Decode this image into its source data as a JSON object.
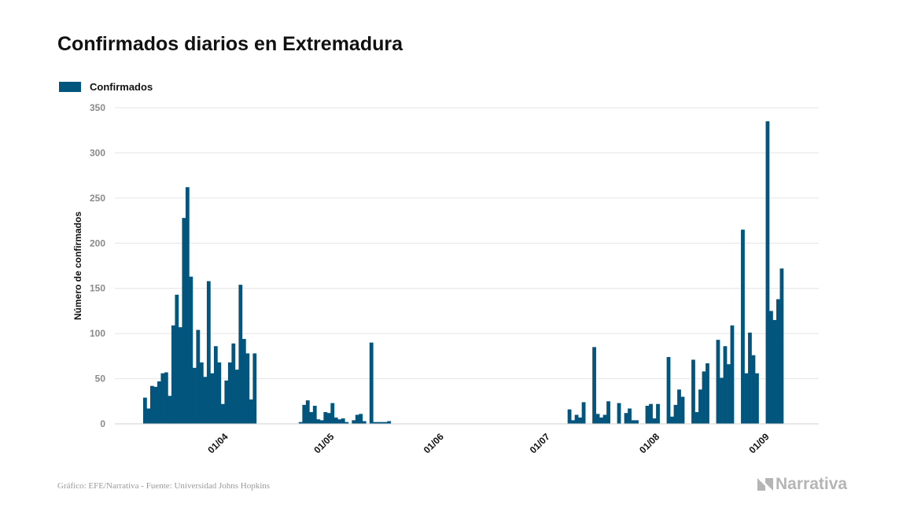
{
  "colors": {
    "bar": "#02557c",
    "grid": "#e4e4e4",
    "brand": "#b5b5b5"
  },
  "title": "Confirmados diarios en Extremadura",
  "footer": "Gráfico: EFE/Narrativa - Fuente: Universidad Johns Hopkins",
  "brand": "Narrativa",
  "chart_data": {
    "type": "bar",
    "title": "Confirmados diarios en Extremadura",
    "ylabel": "Número de confirmados",
    "xlabel": "",
    "ylim": [
      0,
      350
    ],
    "yticks": [
      0,
      50,
      100,
      150,
      200,
      250,
      300,
      350
    ],
    "grid": true,
    "legend_position": "top-left",
    "xlim": [
      "2020-03-01",
      "2020-09-16"
    ],
    "xticks": [
      {
        "date": "2020-04-01",
        "label": "01/04"
      },
      {
        "date": "2020-05-01",
        "label": "01/05"
      },
      {
        "date": "2020-06-01",
        "label": "01/06"
      },
      {
        "date": "2020-07-01",
        "label": "01/07"
      },
      {
        "date": "2020-08-01",
        "label": "01/08"
      },
      {
        "date": "2020-09-01",
        "label": "01/09"
      }
    ],
    "series": [
      {
        "name": "Confirmados",
        "points": [
          [
            "2020-03-09",
            29
          ],
          [
            "2020-03-10",
            17
          ],
          [
            "2020-03-11",
            42
          ],
          [
            "2020-03-12",
            41
          ],
          [
            "2020-03-13",
            47
          ],
          [
            "2020-03-14",
            56
          ],
          [
            "2020-03-15",
            57
          ],
          [
            "2020-03-16",
            31
          ],
          [
            "2020-03-17",
            109
          ],
          [
            "2020-03-18",
            143
          ],
          [
            "2020-03-19",
            107
          ],
          [
            "2020-03-20",
            228
          ],
          [
            "2020-03-21",
            262
          ],
          [
            "2020-03-22",
            163
          ],
          [
            "2020-03-23",
            62
          ],
          [
            "2020-03-24",
            104
          ],
          [
            "2020-03-25",
            68
          ],
          [
            "2020-03-26",
            52
          ],
          [
            "2020-03-27",
            158
          ],
          [
            "2020-03-28",
            56
          ],
          [
            "2020-03-29",
            86
          ],
          [
            "2020-03-30",
            68
          ],
          [
            "2020-03-31",
            22
          ],
          [
            "2020-04-01",
            48
          ],
          [
            "2020-04-02",
            68
          ],
          [
            "2020-04-03",
            89
          ],
          [
            "2020-04-04",
            60
          ],
          [
            "2020-04-05",
            154
          ],
          [
            "2020-04-06",
            94
          ],
          [
            "2020-04-07",
            78
          ],
          [
            "2020-04-08",
            27
          ],
          [
            "2020-04-09",
            78
          ],
          [
            "2020-04-22",
            2
          ],
          [
            "2020-04-23",
            21
          ],
          [
            "2020-04-24",
            26
          ],
          [
            "2020-04-25",
            13
          ],
          [
            "2020-04-26",
            20
          ],
          [
            "2020-04-27",
            5
          ],
          [
            "2020-04-28",
            4
          ],
          [
            "2020-04-29",
            13
          ],
          [
            "2020-04-30",
            12
          ],
          [
            "2020-05-01",
            23
          ],
          [
            "2020-05-02",
            7
          ],
          [
            "2020-05-03",
            5
          ],
          [
            "2020-05-04",
            6
          ],
          [
            "2020-05-05",
            2
          ],
          [
            "2020-05-07",
            4
          ],
          [
            "2020-05-08",
            10
          ],
          [
            "2020-05-09",
            11
          ],
          [
            "2020-05-10",
            3
          ],
          [
            "2020-05-12",
            90
          ],
          [
            "2020-05-13",
            2
          ],
          [
            "2020-05-14",
            2
          ],
          [
            "2020-05-15",
            2
          ],
          [
            "2020-05-16",
            2
          ],
          [
            "2020-05-17",
            3
          ],
          [
            "2020-07-07",
            16
          ],
          [
            "2020-07-08",
            4
          ],
          [
            "2020-07-09",
            10
          ],
          [
            "2020-07-10",
            7
          ],
          [
            "2020-07-11",
            24
          ],
          [
            "2020-07-14",
            85
          ],
          [
            "2020-07-15",
            11
          ],
          [
            "2020-07-16",
            7
          ],
          [
            "2020-07-17",
            10
          ],
          [
            "2020-07-18",
            25
          ],
          [
            "2020-07-21",
            23
          ],
          [
            "2020-07-23",
            12
          ],
          [
            "2020-07-24",
            17
          ],
          [
            "2020-07-25",
            4
          ],
          [
            "2020-07-26",
            4
          ],
          [
            "2020-07-29",
            20
          ],
          [
            "2020-07-30",
            22
          ],
          [
            "2020-07-31",
            6
          ],
          [
            "2020-08-01",
            22
          ],
          [
            "2020-08-04",
            74
          ],
          [
            "2020-08-05",
            8
          ],
          [
            "2020-08-06",
            21
          ],
          [
            "2020-08-07",
            38
          ],
          [
            "2020-08-08",
            30
          ],
          [
            "2020-08-11",
            71
          ],
          [
            "2020-08-12",
            13
          ],
          [
            "2020-08-13",
            38
          ],
          [
            "2020-08-14",
            58
          ],
          [
            "2020-08-15",
            67
          ],
          [
            "2020-08-18",
            93
          ],
          [
            "2020-08-19",
            51
          ],
          [
            "2020-08-20",
            86
          ],
          [
            "2020-08-21",
            66
          ],
          [
            "2020-08-22",
            109
          ],
          [
            "2020-08-25",
            215
          ],
          [
            "2020-08-26",
            56
          ],
          [
            "2020-08-27",
            101
          ],
          [
            "2020-08-28",
            76
          ],
          [
            "2020-08-29",
            56
          ],
          [
            "2020-09-01",
            335
          ],
          [
            "2020-09-02",
            125
          ],
          [
            "2020-09-03",
            115
          ],
          [
            "2020-09-04",
            138
          ],
          [
            "2020-09-05",
            172
          ]
        ]
      }
    ]
  }
}
